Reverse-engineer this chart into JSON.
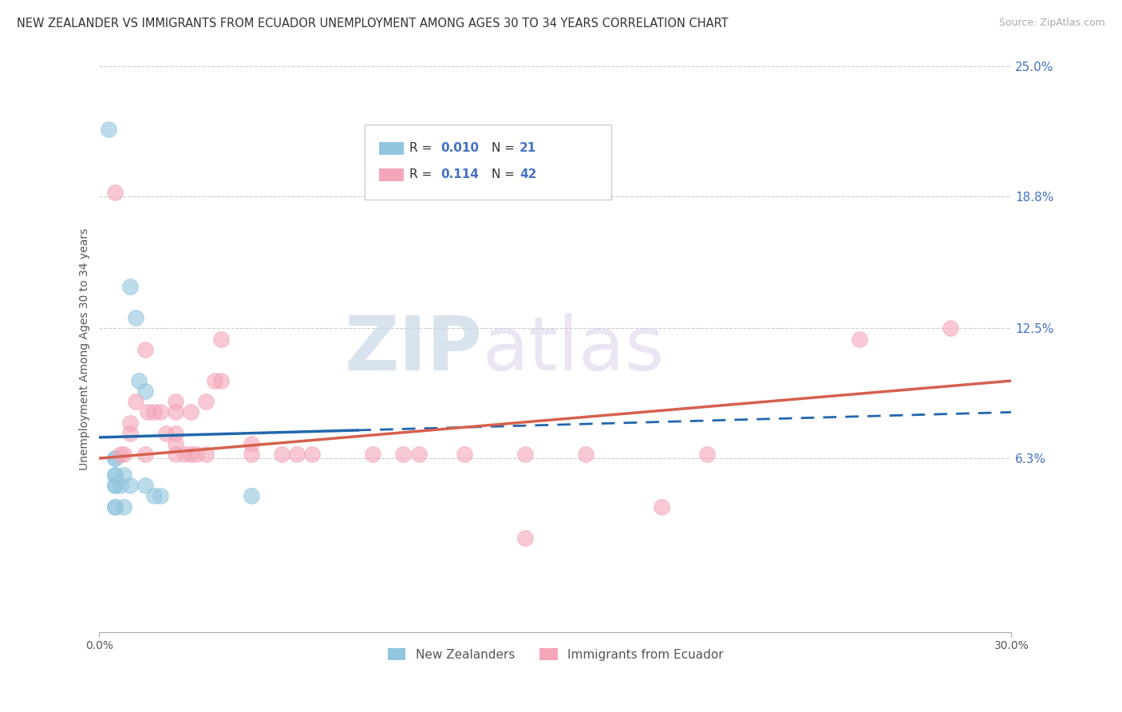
{
  "title": "NEW ZEALANDER VS IMMIGRANTS FROM ECUADOR UNEMPLOYMENT AMONG AGES 30 TO 34 YEARS CORRELATION CHART",
  "source": "Source: ZipAtlas.com",
  "ylabel": "Unemployment Among Ages 30 to 34 years",
  "x_min": 0.0,
  "x_max": 0.3,
  "y_min": -0.02,
  "y_max": 0.25,
  "x_tick_labels": [
    "0.0%",
    "30.0%"
  ],
  "y_tick_vals": [
    0.063,
    0.125,
    0.188,
    0.25
  ],
  "y_tick_labels": [
    "6.3%",
    "12.5%",
    "18.8%",
    "25.0%"
  ],
  "legend_r1": "0.010",
  "legend_n1": "21",
  "legend_r2": "0.114",
  "legend_n2": "42",
  "color_blue": "#92c5de",
  "color_pink": "#f4a6b8",
  "color_blue_line": "#2166ac",
  "color_pink_line": "#d6604d",
  "watermark_zip": "ZIP",
  "watermark_atlas": "atlas",
  "background_color": "#ffffff",
  "grid_color": "#cccccc",
  "title_fontsize": 10.5,
  "source_fontsize": 9,
  "tick_fontsize": 10,
  "ylabel_fontsize": 10,
  "blue_x": [
    0.003,
    0.005,
    0.005,
    0.005,
    0.005,
    0.005,
    0.005,
    0.005,
    0.005,
    0.007,
    0.008,
    0.008,
    0.01,
    0.01,
    0.012,
    0.013,
    0.015,
    0.015,
    0.018,
    0.02,
    0.05
  ],
  "blue_y": [
    0.22,
    0.063,
    0.063,
    0.055,
    0.055,
    0.05,
    0.05,
    0.04,
    0.04,
    0.05,
    0.055,
    0.04,
    0.145,
    0.05,
    0.13,
    0.1,
    0.095,
    0.05,
    0.045,
    0.045,
    0.045
  ],
  "pink_x": [
    0.005,
    0.007,
    0.008,
    0.01,
    0.01,
    0.012,
    0.015,
    0.015,
    0.016,
    0.018,
    0.02,
    0.022,
    0.025,
    0.025,
    0.025,
    0.025,
    0.025,
    0.028,
    0.03,
    0.03,
    0.032,
    0.035,
    0.035,
    0.038,
    0.04,
    0.04,
    0.05,
    0.05,
    0.06,
    0.065,
    0.07,
    0.09,
    0.1,
    0.105,
    0.12,
    0.14,
    0.14,
    0.16,
    0.185,
    0.2,
    0.25,
    0.28
  ],
  "pink_y": [
    0.19,
    0.065,
    0.065,
    0.08,
    0.075,
    0.09,
    0.115,
    0.065,
    0.085,
    0.085,
    0.085,
    0.075,
    0.085,
    0.075,
    0.07,
    0.065,
    0.09,
    0.065,
    0.085,
    0.065,
    0.065,
    0.09,
    0.065,
    0.1,
    0.1,
    0.12,
    0.07,
    0.065,
    0.065,
    0.065,
    0.065,
    0.065,
    0.065,
    0.065,
    0.065,
    0.065,
    0.025,
    0.065,
    0.04,
    0.065,
    0.12,
    0.125
  ],
  "blue_line_x": [
    0.0,
    0.3
  ],
  "blue_line_y": [
    0.073,
    0.085
  ],
  "pink_line_x": [
    0.0,
    0.3
  ],
  "pink_line_y": [
    0.063,
    0.1
  ]
}
